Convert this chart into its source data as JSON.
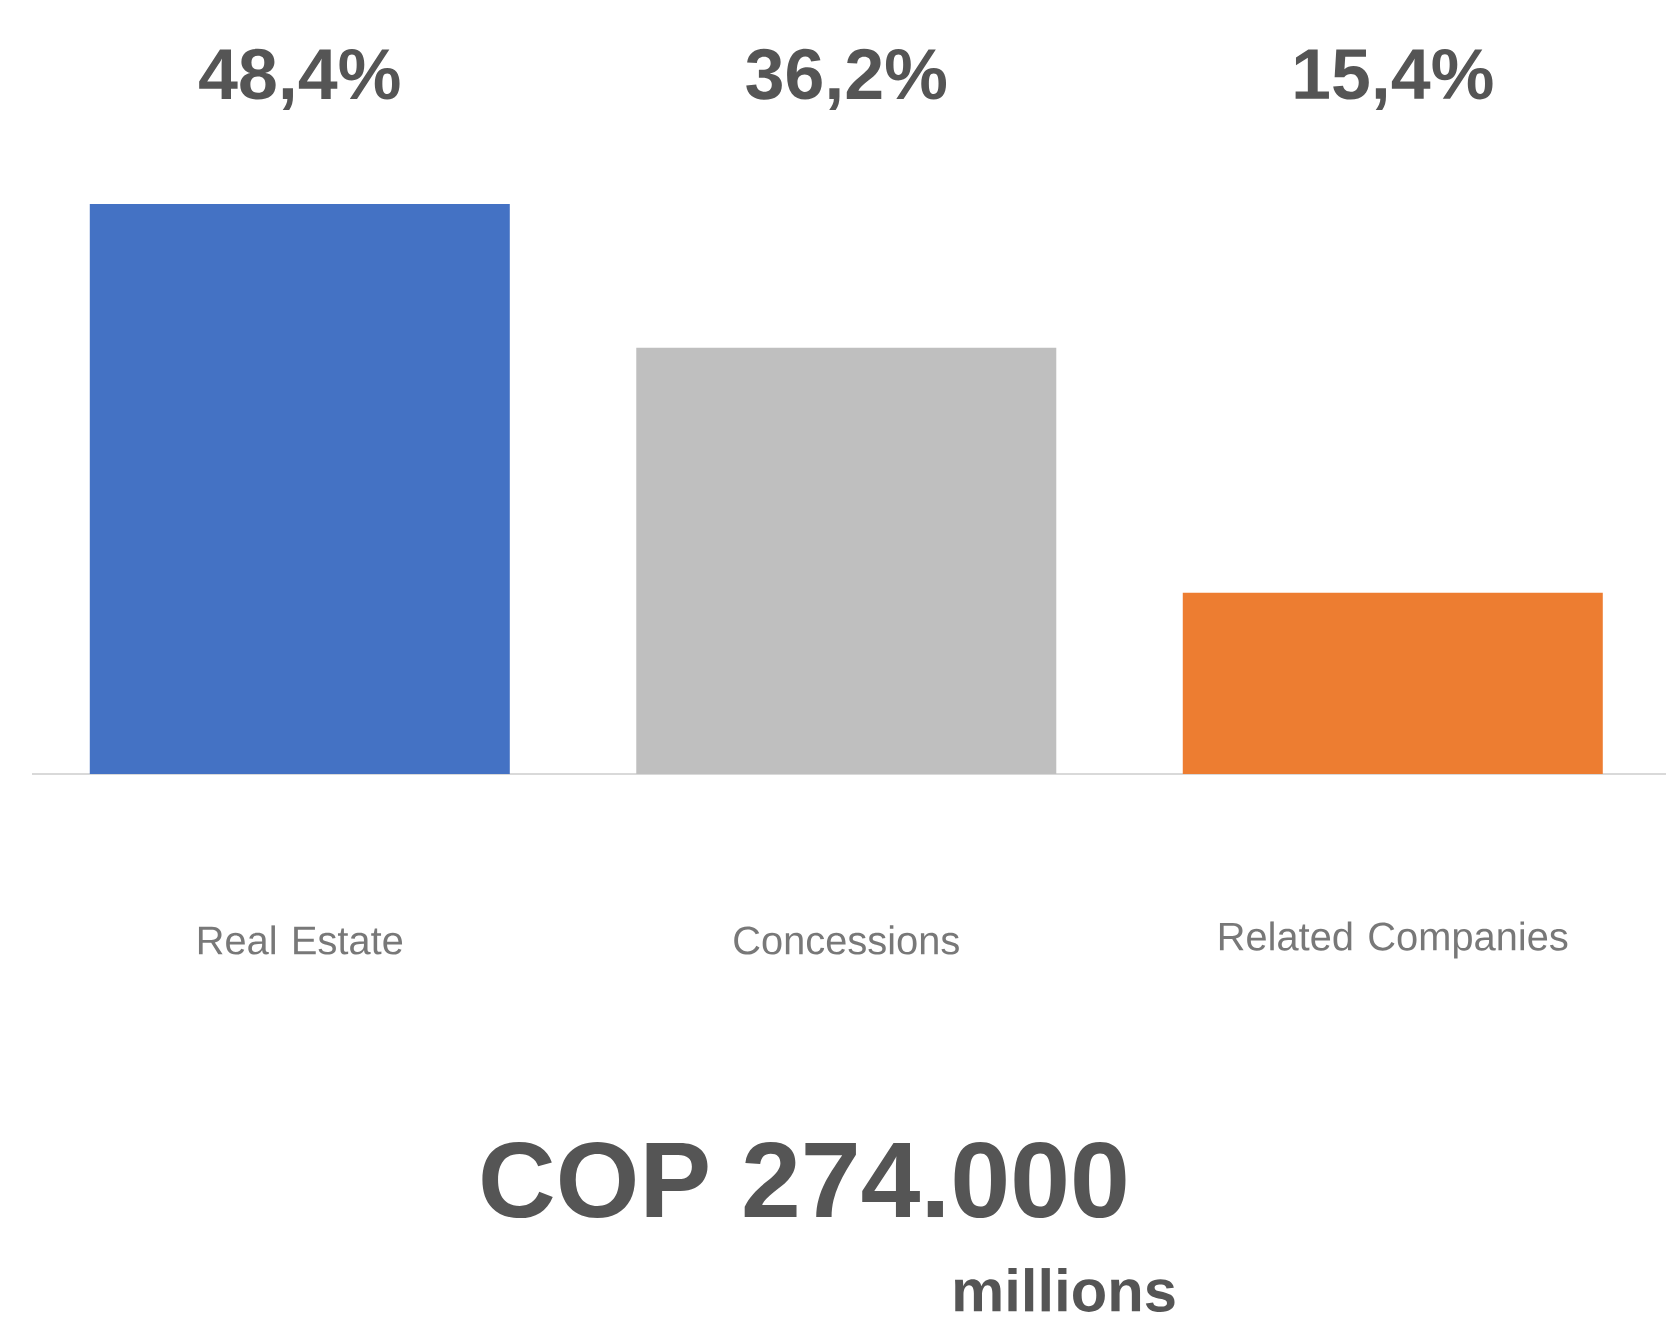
{
  "chart_data": {
    "type": "bar",
    "categories": [
      "Real Estate",
      "Concessions",
      "Related Companies"
    ],
    "values": [
      48.4,
      36.2,
      15.4
    ],
    "colors": [
      "#4472c4",
      "#bfbfbf",
      "#ed7d31"
    ],
    "value_labels": [
      "48,4%",
      "36,2%",
      "15,4%"
    ],
    "annotations": [
      "COP 274.000",
      "millions"
    ]
  }
}
